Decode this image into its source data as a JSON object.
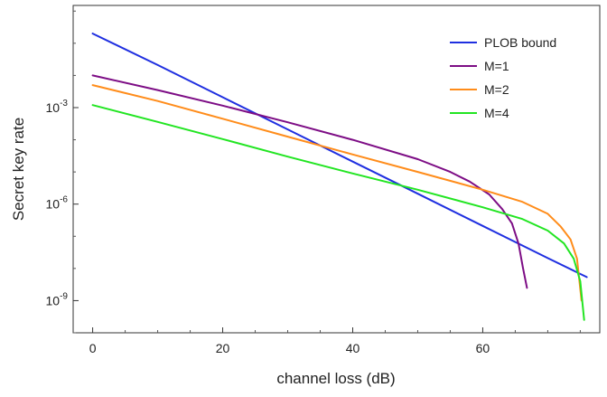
{
  "chart_data": {
    "type": "line",
    "title": "",
    "xlabel": "channel loss (dB)",
    "ylabel": "Secret key rate",
    "xlim": [
      -3,
      78
    ],
    "ylim": [
      1e-10,
      1.5
    ],
    "yscale": "log",
    "x_ticks": [
      0,
      20,
      40,
      60
    ],
    "x_tick_labels": [
      "0",
      "20",
      "40",
      "60"
    ],
    "y_ticks": [
      0.001,
      1e-06,
      1e-09
    ],
    "y_tick_labels": [
      {
        "base": "10",
        "exp": "-3"
      },
      {
        "base": "10",
        "exp": "-6"
      },
      {
        "base": "10",
        "exp": "-9"
      }
    ],
    "grid": false,
    "legend_position": "top-right",
    "series": [
      {
        "name": "PLOB bound",
        "color": "#1f2fe0",
        "x": [
          0,
          10,
          20,
          30,
          40,
          50,
          60,
          70,
          76
        ],
        "y": [
          0.2,
          0.021,
          0.0021,
          0.00021,
          2.1e-05,
          2.1e-06,
          2.1e-07,
          2.1e-08,
          5.4e-09
        ]
      },
      {
        "name": "M=1",
        "color": "#7d0d85",
        "x": [
          0,
          10,
          20,
          30,
          40,
          50,
          55,
          58,
          61,
          63,
          64.5,
          65.5,
          66.2,
          66.8
        ],
        "y": [
          0.01,
          0.0035,
          0.00115,
          0.00035,
          0.0001,
          2.5e-05,
          1e-05,
          5e-06,
          2e-06,
          7e-07,
          2.5e-07,
          6e-08,
          1e-08,
          2.5e-09
        ]
      },
      {
        "name": "M=2",
        "color": "#ff8c1a",
        "x": [
          0,
          10,
          20,
          30,
          40,
          50,
          60,
          66,
          70,
          72,
          73.5,
          74.5,
          75.2
        ],
        "y": [
          0.005,
          0.0016,
          0.00045,
          0.000125,
          3.5e-05,
          1e-05,
          2.8e-06,
          1.2e-06,
          5e-07,
          2e-07,
          8e-08,
          2e-08,
          1e-09
        ]
      },
      {
        "name": "M=4",
        "color": "#22e522",
        "x": [
          0,
          10,
          20,
          30,
          40,
          50,
          60,
          66,
          70,
          72.5,
          74,
          75,
          75.6
        ],
        "y": [
          0.0012,
          0.00036,
          0.000105,
          3e-05,
          9e-06,
          2.8e-06,
          8e-07,
          3.5e-07,
          1.5e-07,
          6e-08,
          2e-08,
          4e-09,
          2.5e-10
        ]
      }
    ]
  }
}
